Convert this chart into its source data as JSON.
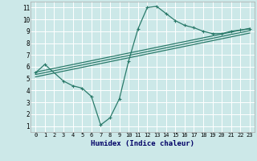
{
  "xlabel": "Humidex (Indice chaleur)",
  "ylabel": "",
  "bg_color": "#cce8e8",
  "grid_color": "#ffffff",
  "line_color": "#2a7a6a",
  "xlim": [
    -0.5,
    23.5
  ],
  "ylim": [
    0.5,
    11.5
  ],
  "xticks": [
    0,
    1,
    2,
    3,
    4,
    5,
    6,
    7,
    8,
    9,
    10,
    11,
    12,
    13,
    14,
    15,
    16,
    17,
    18,
    19,
    20,
    21,
    22,
    23
  ],
  "yticks": [
    1,
    2,
    3,
    4,
    5,
    6,
    7,
    8,
    9,
    10,
    11
  ],
  "curve_x": [
    0,
    1,
    3,
    4,
    5,
    6,
    7,
    8,
    9,
    10,
    11,
    12,
    13,
    14,
    15,
    16,
    17,
    18,
    19,
    20,
    21,
    22,
    23
  ],
  "curve_y": [
    5.5,
    6.2,
    4.8,
    4.4,
    4.2,
    3.5,
    1.1,
    1.7,
    3.3,
    6.5,
    9.2,
    11.0,
    11.1,
    10.5,
    9.9,
    9.5,
    9.3,
    9.0,
    8.8,
    8.8,
    9.0,
    9.1,
    9.2
  ],
  "line2_x": [
    0,
    23
  ],
  "line2_y": [
    5.55,
    9.25
  ],
  "line3_x": [
    0,
    23
  ],
  "line3_y": [
    5.35,
    9.05
  ],
  "line4_x": [
    0,
    23
  ],
  "line4_y": [
    5.15,
    8.85
  ],
  "marker": "+"
}
